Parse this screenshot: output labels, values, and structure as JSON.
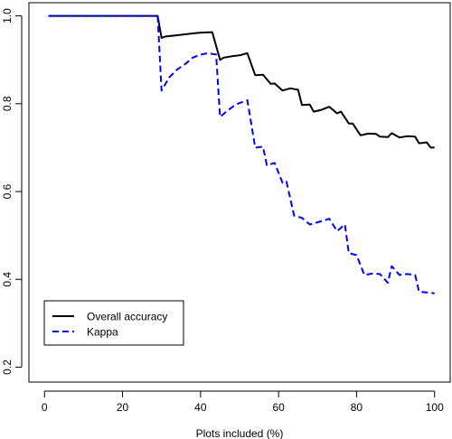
{
  "chart_data": {
    "type": "line",
    "title": "",
    "xlabel": "Plots included (%)",
    "ylabel": "",
    "xlim": [
      -4,
      104
    ],
    "ylim": [
      0.166,
      1.03
    ],
    "xticks": [
      0,
      20,
      40,
      60,
      80,
      100
    ],
    "yticks": [
      0.2,
      0.4,
      0.6,
      0.8,
      1.0
    ],
    "ytick_labels": [
      "0.2",
      "0.4",
      "0.6",
      "0.8",
      "1.0"
    ],
    "grid": false,
    "legend_position": "bottom-left",
    "series": [
      {
        "name": "Overall accuracy",
        "color": "#000000",
        "dash": "solid",
        "x": [
          1,
          29,
          30,
          31,
          33,
          35,
          36,
          38,
          40,
          43,
          45,
          46,
          48,
          50,
          52,
          54,
          56,
          58,
          59,
          61,
          63,
          65,
          66,
          68,
          69,
          71,
          73,
          75,
          76,
          78,
          79,
          81,
          83,
          85,
          86,
          88,
          89,
          91,
          93,
          95,
          96,
          98,
          99,
          100
        ],
        "y": [
          1.0,
          1.0,
          0.95,
          0.953,
          0.955,
          0.957,
          0.958,
          0.96,
          0.962,
          0.963,
          0.9,
          0.905,
          0.908,
          0.91,
          0.915,
          0.865,
          0.866,
          0.845,
          0.846,
          0.83,
          0.835,
          0.832,
          0.797,
          0.798,
          0.782,
          0.786,
          0.793,
          0.778,
          0.782,
          0.755,
          0.755,
          0.728,
          0.732,
          0.731,
          0.725,
          0.724,
          0.733,
          0.723,
          0.726,
          0.725,
          0.71,
          0.712,
          0.7,
          0.7
        ]
      },
      {
        "name": "Kappa",
        "color": "#0000ff",
        "dash": "dashed",
        "x": [
          1,
          29,
          30,
          32,
          34,
          36,
          38,
          40,
          42,
          44,
          45,
          47,
          49,
          51,
          52,
          54,
          56,
          57,
          59,
          61,
          62,
          64,
          66,
          68,
          70,
          72,
          73,
          75,
          77,
          78,
          80,
          82,
          84,
          86,
          88,
          89,
          91,
          93,
          95,
          96,
          98,
          100
        ],
        "y": [
          1.0,
          1.0,
          0.83,
          0.86,
          0.878,
          0.89,
          0.905,
          0.912,
          0.915,
          0.912,
          0.77,
          0.785,
          0.798,
          0.805,
          0.808,
          0.7,
          0.702,
          0.66,
          0.665,
          0.62,
          0.623,
          0.545,
          0.54,
          0.525,
          0.53,
          0.535,
          0.538,
          0.51,
          0.525,
          0.46,
          0.455,
          0.41,
          0.413,
          0.412,
          0.392,
          0.43,
          0.41,
          0.412,
          0.41,
          0.372,
          0.37,
          0.368
        ]
      }
    ]
  }
}
